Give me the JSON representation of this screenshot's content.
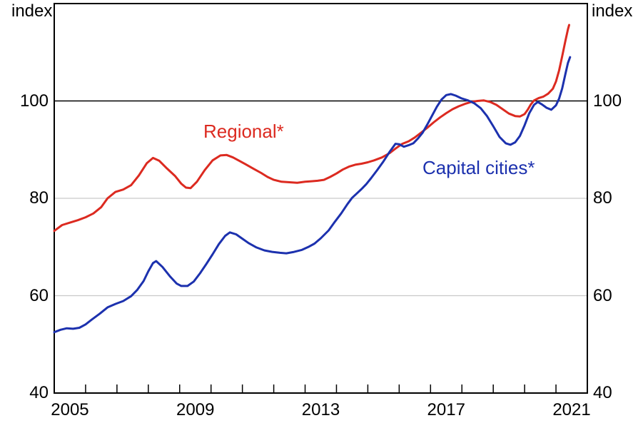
{
  "header": {
    "left_axis_unit": "index",
    "right_axis_unit": "index"
  },
  "chart_data": {
    "type": "line",
    "title": "",
    "xlabel": "",
    "ylabel": "index",
    "grid": "horizontal-light",
    "legend_position": "inline-labels",
    "x_axis": {
      "range": [
        2005,
        2022
      ],
      "tick_interval_years": 1,
      "label_years": [
        2005.5,
        2009.5,
        2013.5,
        2017.5,
        2021.5
      ],
      "labels": [
        "2005",
        "2009",
        "2013",
        "2017",
        "2021"
      ]
    },
    "y_axis": {
      "range": [
        40,
        120
      ],
      "ticks": [
        40,
        60,
        80,
        100
      ],
      "tick_labels": [
        "40",
        "60",
        "80",
        "100"
      ],
      "gridlines": [
        60,
        80
      ],
      "reference_line": 100,
      "unit": "index"
    },
    "colors": {
      "regional": "#dc2a20",
      "capital_cities": "#1c31ae",
      "gridline": "#c9c9c9",
      "axis": "#000000"
    },
    "series": [
      {
        "name": "Regional*",
        "color": "#dc2a20",
        "points": [
          [
            2005.0,
            73.3
          ],
          [
            2005.25,
            74.5
          ],
          [
            2005.5,
            75.0
          ],
          [
            2005.75,
            75.5
          ],
          [
            2006.0,
            76.1
          ],
          [
            2006.25,
            76.9
          ],
          [
            2006.5,
            78.2
          ],
          [
            2006.7,
            80.0
          ],
          [
            2006.95,
            81.3
          ],
          [
            2007.2,
            81.8
          ],
          [
            2007.45,
            82.7
          ],
          [
            2007.7,
            84.7
          ],
          [
            2007.95,
            87.2
          ],
          [
            2008.15,
            88.3
          ],
          [
            2008.35,
            87.7
          ],
          [
            2008.6,
            86.1
          ],
          [
            2008.85,
            84.6
          ],
          [
            2009.05,
            83.0
          ],
          [
            2009.2,
            82.2
          ],
          [
            2009.35,
            82.1
          ],
          [
            2009.55,
            83.4
          ],
          [
            2009.8,
            85.8
          ],
          [
            2010.05,
            87.8
          ],
          [
            2010.3,
            88.8
          ],
          [
            2010.5,
            88.9
          ],
          [
            2010.7,
            88.4
          ],
          [
            2010.9,
            87.7
          ],
          [
            2011.1,
            87.0
          ],
          [
            2011.35,
            86.1
          ],
          [
            2011.6,
            85.2
          ],
          [
            2011.8,
            84.4
          ],
          [
            2012.0,
            83.8
          ],
          [
            2012.25,
            83.4
          ],
          [
            2012.5,
            83.3
          ],
          [
            2012.75,
            83.2
          ],
          [
            2013.0,
            83.4
          ],
          [
            2013.2,
            83.5
          ],
          [
            2013.4,
            83.6
          ],
          [
            2013.6,
            83.8
          ],
          [
            2013.8,
            84.4
          ],
          [
            2014.0,
            85.1
          ],
          [
            2014.2,
            85.9
          ],
          [
            2014.4,
            86.5
          ],
          [
            2014.6,
            86.9
          ],
          [
            2014.8,
            87.1
          ],
          [
            2015.0,
            87.4
          ],
          [
            2015.2,
            87.8
          ],
          [
            2015.45,
            88.4
          ],
          [
            2015.7,
            89.3
          ],
          [
            2015.9,
            90.3
          ],
          [
            2016.1,
            91.2
          ],
          [
            2016.3,
            91.7
          ],
          [
            2016.5,
            92.5
          ],
          [
            2016.7,
            93.5
          ],
          [
            2016.9,
            94.5
          ],
          [
            2017.1,
            95.6
          ],
          [
            2017.3,
            96.6
          ],
          [
            2017.5,
            97.5
          ],
          [
            2017.7,
            98.3
          ],
          [
            2017.9,
            98.9
          ],
          [
            2018.1,
            99.4
          ],
          [
            2018.3,
            99.8
          ],
          [
            2018.5,
            100.0
          ],
          [
            2018.7,
            100.1
          ],
          [
            2018.9,
            99.8
          ],
          [
            2019.1,
            99.2
          ],
          [
            2019.3,
            98.3
          ],
          [
            2019.5,
            97.4
          ],
          [
            2019.7,
            96.9
          ],
          [
            2019.85,
            96.8
          ],
          [
            2020.0,
            97.3
          ],
          [
            2020.1,
            98.2
          ],
          [
            2020.2,
            99.3
          ],
          [
            2020.3,
            100.1
          ],
          [
            2020.45,
            100.6
          ],
          [
            2020.6,
            100.9
          ],
          [
            2020.75,
            101.5
          ],
          [
            2020.9,
            102.5
          ],
          [
            2021.0,
            104.0
          ],
          [
            2021.1,
            106.3
          ],
          [
            2021.2,
            109.2
          ],
          [
            2021.3,
            112.3
          ],
          [
            2021.38,
            114.7
          ],
          [
            2021.42,
            115.6
          ]
        ]
      },
      {
        "name": "Capital cities*",
        "color": "#1c31ae",
        "points": [
          [
            2005.0,
            52.5
          ],
          [
            2005.2,
            53.0
          ],
          [
            2005.4,
            53.3
          ],
          [
            2005.6,
            53.2
          ],
          [
            2005.8,
            53.4
          ],
          [
            2006.0,
            54.1
          ],
          [
            2006.2,
            55.1
          ],
          [
            2006.45,
            56.3
          ],
          [
            2006.7,
            57.6
          ],
          [
            2006.95,
            58.3
          ],
          [
            2007.2,
            58.9
          ],
          [
            2007.45,
            59.9
          ],
          [
            2007.65,
            61.2
          ],
          [
            2007.85,
            63.0
          ],
          [
            2008.0,
            65.0
          ],
          [
            2008.15,
            66.7
          ],
          [
            2008.25,
            67.1
          ],
          [
            2008.45,
            65.9
          ],
          [
            2008.7,
            63.9
          ],
          [
            2008.9,
            62.5
          ],
          [
            2009.05,
            62.0
          ],
          [
            2009.25,
            62.0
          ],
          [
            2009.45,
            62.9
          ],
          [
            2009.65,
            64.6
          ],
          [
            2009.85,
            66.5
          ],
          [
            2010.05,
            68.5
          ],
          [
            2010.25,
            70.6
          ],
          [
            2010.45,
            72.3
          ],
          [
            2010.6,
            73.0
          ],
          [
            2010.8,
            72.6
          ],
          [
            2011.0,
            71.7
          ],
          [
            2011.2,
            70.8
          ],
          [
            2011.45,
            69.9
          ],
          [
            2011.7,
            69.3
          ],
          [
            2011.95,
            69.0
          ],
          [
            2012.2,
            68.8
          ],
          [
            2012.4,
            68.7
          ],
          [
            2012.65,
            69.0
          ],
          [
            2012.9,
            69.4
          ],
          [
            2013.1,
            70.0
          ],
          [
            2013.3,
            70.7
          ],
          [
            2013.5,
            71.8
          ],
          [
            2013.75,
            73.4
          ],
          [
            2013.95,
            75.2
          ],
          [
            2014.15,
            76.9
          ],
          [
            2014.35,
            78.8
          ],
          [
            2014.5,
            80.1
          ],
          [
            2014.65,
            81.0
          ],
          [
            2014.8,
            81.9
          ],
          [
            2014.95,
            82.9
          ],
          [
            2015.1,
            84.1
          ],
          [
            2015.3,
            85.8
          ],
          [
            2015.5,
            87.6
          ],
          [
            2015.7,
            89.6
          ],
          [
            2015.88,
            91.2
          ],
          [
            2016.0,
            91.1
          ],
          [
            2016.15,
            90.6
          ],
          [
            2016.3,
            90.9
          ],
          [
            2016.45,
            91.3
          ],
          [
            2016.6,
            92.3
          ],
          [
            2016.75,
            93.5
          ],
          [
            2016.9,
            95.2
          ],
          [
            2017.05,
            97.0
          ],
          [
            2017.2,
            98.8
          ],
          [
            2017.35,
            100.3
          ],
          [
            2017.5,
            101.2
          ],
          [
            2017.65,
            101.4
          ],
          [
            2017.8,
            101.1
          ],
          [
            2018.0,
            100.5
          ],
          [
            2018.2,
            100.1
          ],
          [
            2018.4,
            99.5
          ],
          [
            2018.6,
            98.5
          ],
          [
            2018.8,
            96.9
          ],
          [
            2019.0,
            94.8
          ],
          [
            2019.2,
            92.6
          ],
          [
            2019.4,
            91.3
          ],
          [
            2019.55,
            91.0
          ],
          [
            2019.7,
            91.5
          ],
          [
            2019.85,
            92.8
          ],
          [
            2020.0,
            95.0
          ],
          [
            2020.15,
            97.5
          ],
          [
            2020.3,
            99.2
          ],
          [
            2020.42,
            99.8
          ],
          [
            2020.55,
            99.3
          ],
          [
            2020.7,
            98.6
          ],
          [
            2020.85,
            98.2
          ],
          [
            2021.0,
            99.1
          ],
          [
            2021.1,
            100.5
          ],
          [
            2021.2,
            102.6
          ],
          [
            2021.3,
            105.5
          ],
          [
            2021.38,
            107.8
          ],
          [
            2021.45,
            109.0
          ]
        ]
      }
    ]
  }
}
